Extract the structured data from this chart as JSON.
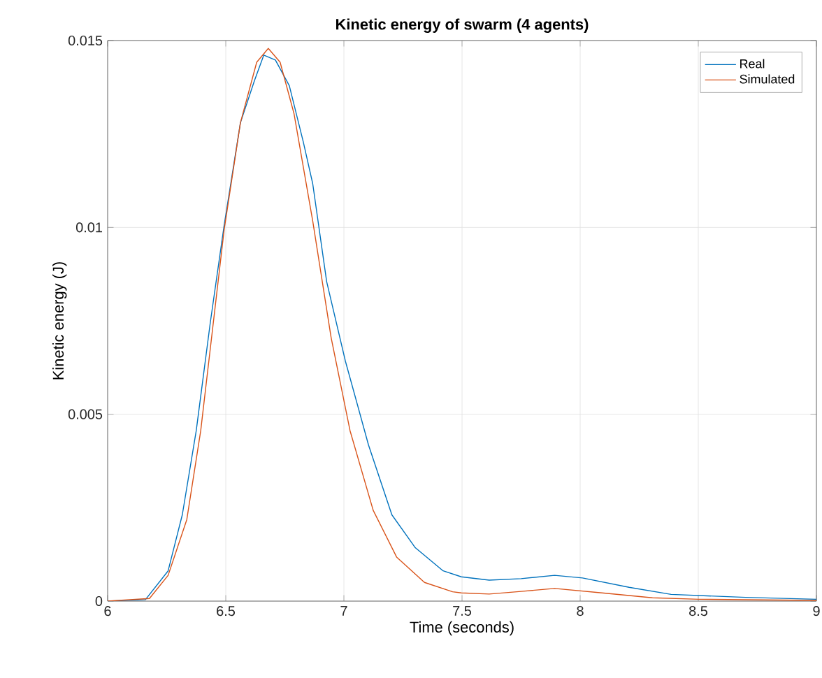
{
  "chart_data": {
    "type": "line",
    "title": "Kinetic energy of swarm (4 agents)",
    "xlabel": "Time (seconds)",
    "ylabel": "Kinetic energy (J)",
    "xlim": [
      6,
      9
    ],
    "ylim": [
      0,
      0.015
    ],
    "xticks": [
      6,
      6.5,
      7,
      7.5,
      8,
      8.5,
      9
    ],
    "yticks": [
      0,
      0.005,
      0.01,
      0.015
    ],
    "grid": true,
    "legend": "top right",
    "marker": "none",
    "line_style": "solid",
    "series": [
      {
        "name": "Real",
        "color": "#0072bd",
        "x": [
          6.0,
          6.16,
          6.256,
          6.316,
          6.375,
          6.434,
          6.493,
          6.562,
          6.621,
          6.661,
          6.71,
          6.769,
          6.828,
          6.868,
          6.927,
          7.006,
          7.104,
          7.203,
          7.302,
          7.42,
          7.497,
          7.615,
          7.75,
          7.892,
          8.01,
          8.207,
          8.385,
          8.7,
          9.0
        ],
        "values": [
          0,
          4e-05,
          0.00081,
          0.00231,
          0.00456,
          0.00743,
          0.01005,
          0.0128,
          0.01392,
          0.01461,
          0.01448,
          0.01379,
          0.01229,
          0.01117,
          0.00855,
          0.00643,
          0.00418,
          0.00231,
          0.00143,
          0.00081,
          0.00065,
          0.00056,
          0.0006,
          0.00069,
          0.00062,
          0.00037,
          0.00018,
          0.0001,
          5e-05
        ]
      },
      {
        "name": "Simulated",
        "color": "#d95319",
        "x": [
          6.0,
          6.177,
          6.256,
          6.335,
          6.394,
          6.493,
          6.562,
          6.631,
          6.68,
          6.73,
          6.789,
          6.868,
          6.946,
          7.026,
          7.124,
          7.223,
          7.341,
          7.46,
          7.497,
          7.615,
          7.75,
          7.892,
          8.108,
          8.306,
          8.503,
          9.0
        ],
        "values": [
          0,
          7e-05,
          0.00069,
          0.00218,
          0.00456,
          0.00993,
          0.0128,
          0.01442,
          0.01479,
          0.01442,
          0.01304,
          0.01017,
          0.00705,
          0.00456,
          0.00243,
          0.00118,
          0.0005,
          0.00025,
          0.00022,
          0.00019,
          0.00026,
          0.00034,
          0.00021,
          9e-05,
          5e-05,
          2e-05
        ]
      }
    ]
  }
}
